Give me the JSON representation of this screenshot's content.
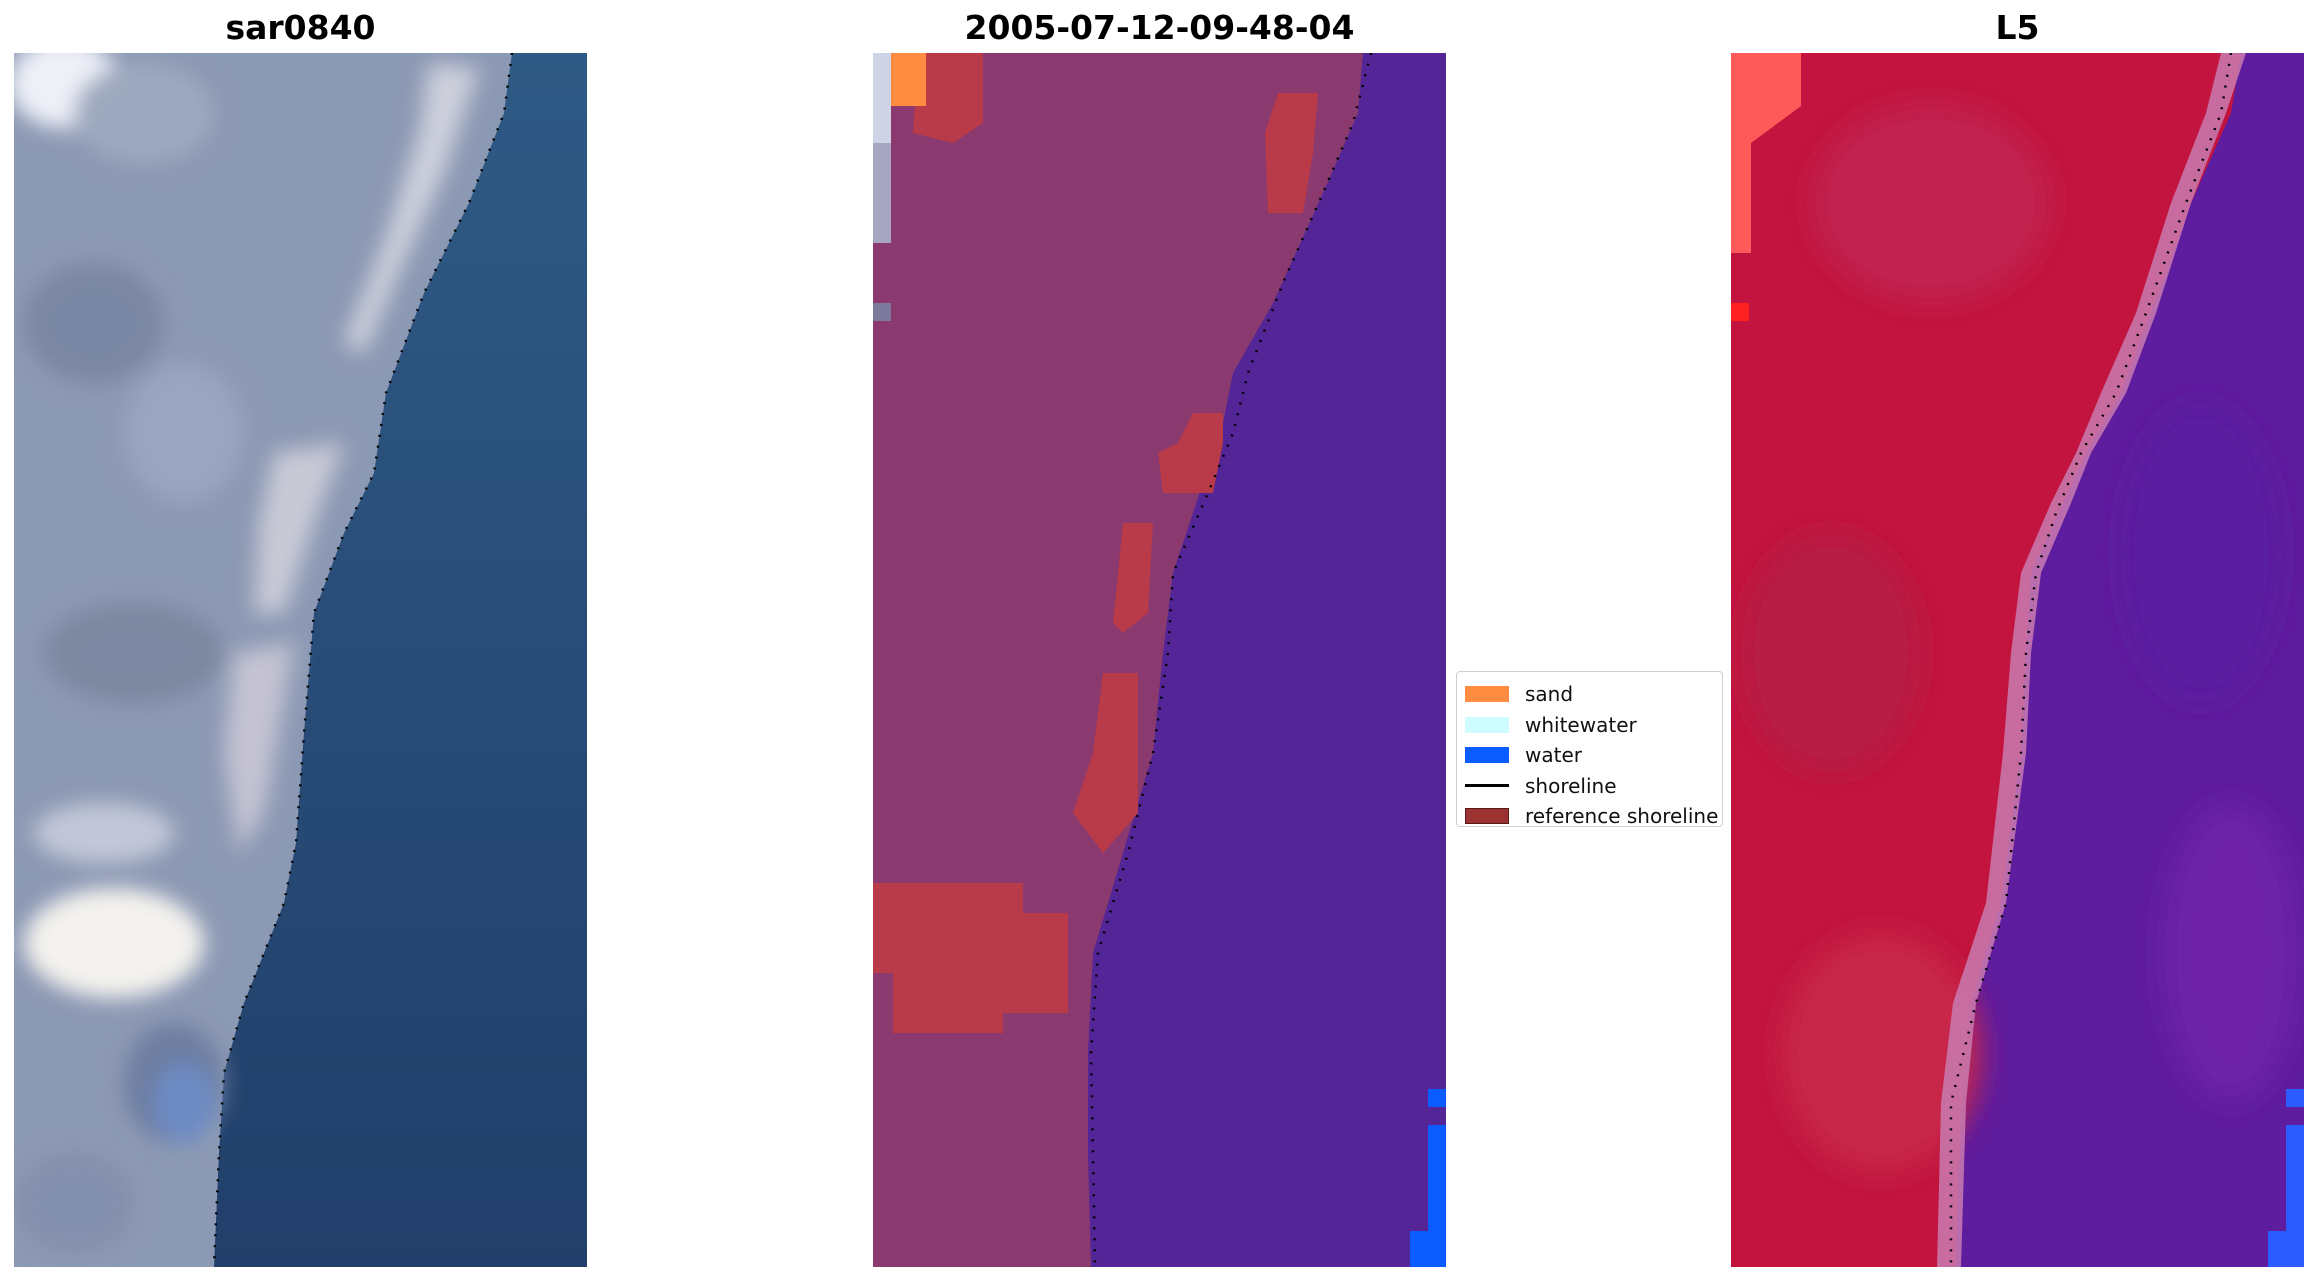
{
  "panels": [
    {
      "title": "sar0840"
    },
    {
      "title": "2005-07-12-09-48-04"
    },
    {
      "title": "L5"
    }
  ],
  "legend": {
    "items": [
      {
        "label": "sand",
        "color": "#ff8c40",
        "kind": "patch"
      },
      {
        "label": "whitewater",
        "color": "#cffcff",
        "kind": "patch"
      },
      {
        "label": "water",
        "color": "#0a5cff",
        "kind": "patch"
      },
      {
        "label": "shoreline",
        "color": "#000000",
        "kind": "line"
      },
      {
        "label": "reference shoreline",
        "color": "#9b3333",
        "kind": "patch"
      }
    ]
  },
  "colors": {
    "sea_rgb": "#2a517e",
    "land_rgb": "#8e9bb6",
    "land_classified": "#8a3a6e",
    "water_classified": "#532596",
    "sand_overlay": "#b93a48",
    "land_index": "#c2143e",
    "water_index": "#5e1c9e"
  }
}
